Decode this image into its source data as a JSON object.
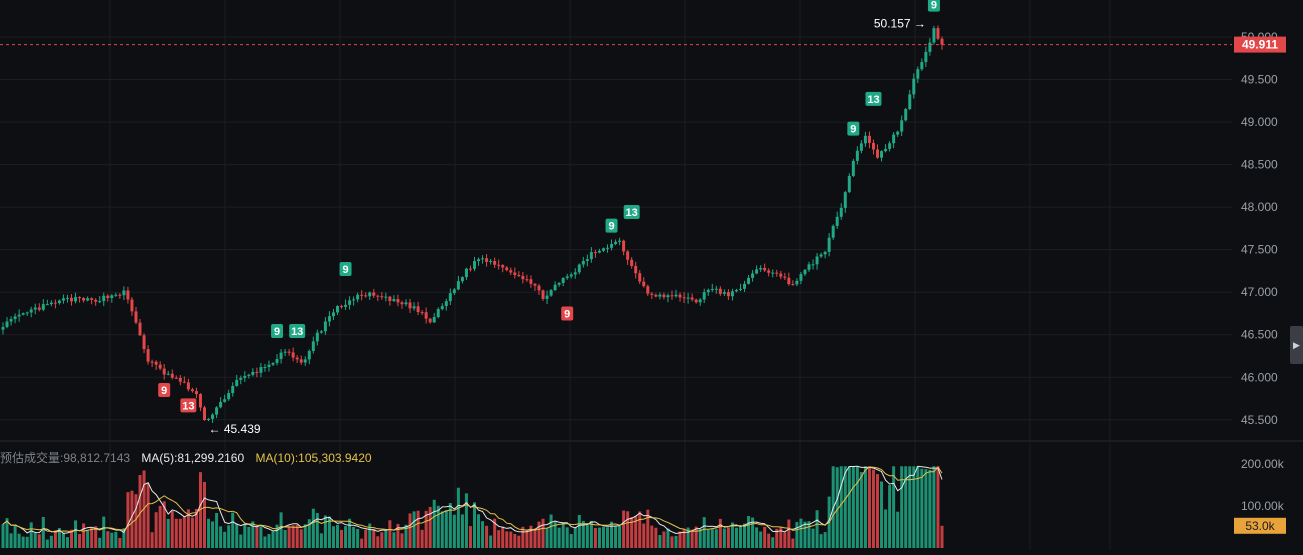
{
  "chart_data": {
    "type": "candlestick",
    "price_axis": {
      "ticks": [
        "50.000",
        "49.500",
        "49.000",
        "48.500",
        "48.000",
        "47.500",
        "47.000",
        "46.500",
        "46.000",
        "45.500"
      ],
      "tick_values": [
        50000,
        49500,
        49000,
        48500,
        48000,
        47500,
        47000,
        46500,
        46000,
        45500
      ],
      "range": [
        45380,
        50200
      ]
    },
    "current_price": {
      "label": "49.911",
      "value": 49911
    },
    "annotations": [
      {
        "label": "50.157",
        "value": 50157,
        "kind": "high"
      },
      {
        "label": "45.439",
        "value": 45439,
        "kind": "low"
      }
    ],
    "trend_anchors": [
      [
        0,
        46620
      ],
      [
        8,
        46800
      ],
      [
        16,
        46920
      ],
      [
        22,
        46900
      ],
      [
        26,
        46950
      ],
      [
        30,
        47000
      ],
      [
        32,
        46780
      ],
      [
        36,
        46200
      ],
      [
        40,
        46050
      ],
      [
        44,
        45950
      ],
      [
        48,
        45800
      ],
      [
        50,
        45470
      ],
      [
        54,
        45700
      ],
      [
        58,
        45950
      ],
      [
        62,
        46050
      ],
      [
        66,
        46150
      ],
      [
        70,
        46300
      ],
      [
        74,
        46150
      ],
      [
        78,
        46500
      ],
      [
        82,
        46780
      ],
      [
        86,
        46900
      ],
      [
        90,
        46980
      ],
      [
        94,
        46930
      ],
      [
        98,
        46880
      ],
      [
        102,
        46820
      ],
      [
        106,
        46650
      ],
      [
        110,
        46900
      ],
      [
        114,
        47200
      ],
      [
        118,
        47400
      ],
      [
        122,
        47350
      ],
      [
        126,
        47250
      ],
      [
        130,
        47150
      ],
      [
        134,
        46950
      ],
      [
        138,
        47100
      ],
      [
        142,
        47250
      ],
      [
        146,
        47450
      ],
      [
        150,
        47550
      ],
      [
        153,
        47600
      ],
      [
        156,
        47300
      ],
      [
        160,
        47000
      ],
      [
        164,
        46950
      ],
      [
        168,
        46950
      ],
      [
        172,
        46900
      ],
      [
        176,
        47050
      ],
      [
        180,
        46950
      ],
      [
        184,
        47100
      ],
      [
        188,
        47300
      ],
      [
        192,
        47200
      ],
      [
        196,
        47100
      ],
      [
        200,
        47300
      ],
      [
        204,
        47500
      ],
      [
        208,
        48000
      ],
      [
        211,
        48550
      ],
      [
        214,
        48850
      ],
      [
        217,
        48600
      ],
      [
        220,
        48750
      ],
      [
        223,
        49000
      ],
      [
        226,
        49500
      ],
      [
        229,
        49800
      ],
      [
        231,
        50100
      ],
      [
        233,
        49911
      ]
    ],
    "markers": [
      {
        "label": "9",
        "candle": 85,
        "value": 47050,
        "position": "above",
        "color": "green"
      },
      {
        "label": "9",
        "candle": 68,
        "value": 46320,
        "position": "above",
        "color": "green"
      },
      {
        "label": "13",
        "candle": 73,
        "value": 46320,
        "position": "above",
        "color": "green"
      },
      {
        "label": "9",
        "candle": 40,
        "value": 46050,
        "position": "below",
        "color": "red"
      },
      {
        "label": "13",
        "candle": 46,
        "value": 45870,
        "position": "below",
        "color": "red"
      },
      {
        "label": "9",
        "candle": 151,
        "value": 47560,
        "position": "above",
        "color": "green"
      },
      {
        "label": "13",
        "candle": 156,
        "value": 47720,
        "position": "above",
        "color": "green"
      },
      {
        "label": "9",
        "candle": 140,
        "value": 46950,
        "position": "below",
        "color": "red"
      },
      {
        "label": "9",
        "candle": 211,
        "value": 48700,
        "position": "above",
        "color": "green"
      },
      {
        "label": "13",
        "candle": 216,
        "value": 49050,
        "position": "above",
        "color": "green"
      },
      {
        "label": "9",
        "candle": 231,
        "value": 50157,
        "position": "above",
        "color": "green"
      }
    ],
    "volume": {
      "ticks": [
        "200.00k",
        "100.00k"
      ],
      "tick_values": [
        200000,
        100000
      ],
      "current_label": "53.0k",
      "current_value": 53000,
      "legend_label": "预估成交量:98,812.7143",
      "ma5_label": "MA(5):81,299.2160",
      "ma10_label": "MA(10):105,303.9420"
    },
    "colors": {
      "up": "#1fa987",
      "down": "#e2474a",
      "background": "#0e0f12",
      "grid": "#1c1e22",
      "axis_text": "#9aa0a6",
      "ma5": "#e8e8e8",
      "ma10": "#e6c24a",
      "current_price_badge": "#e2474a",
      "volume_badge": "#e8a33a"
    }
  }
}
